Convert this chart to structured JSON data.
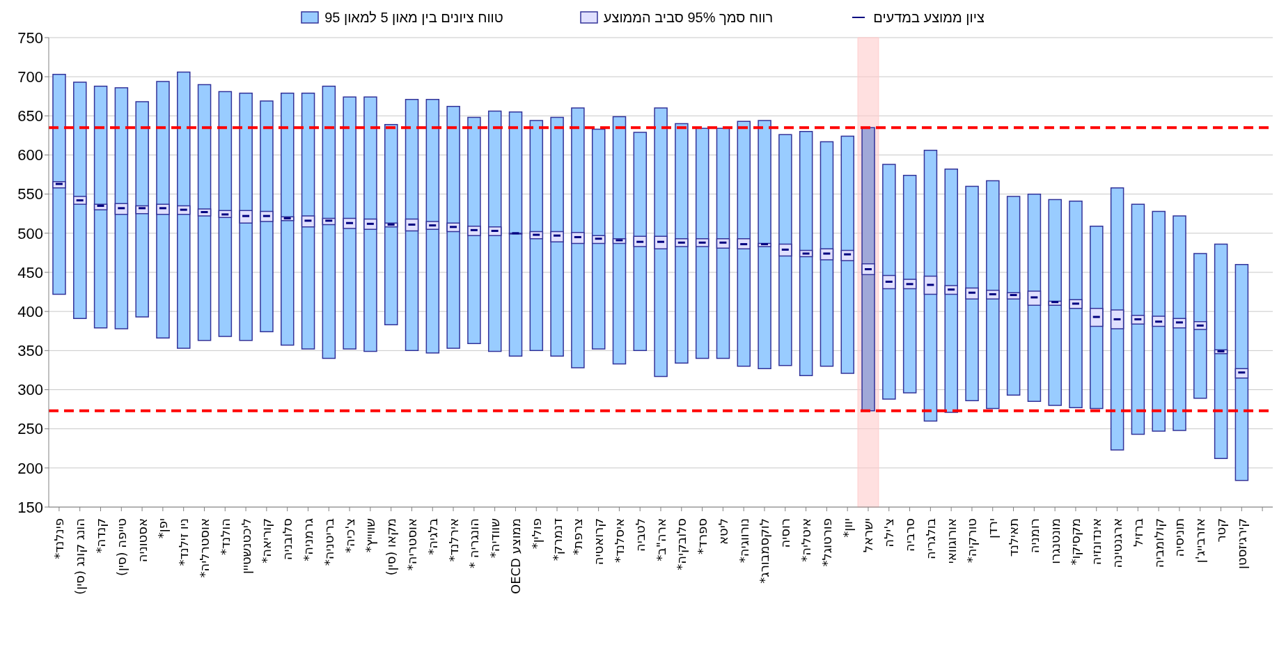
{
  "chart_data": {
    "type": "bar",
    "categories": [
      "פינלנד*",
      "הונג קונג (סין)",
      "קנדה*",
      "טייפה (סין)",
      "אסטוניה",
      "יפן*",
      "ניו זילנד*",
      "אוסטרליה*",
      "הולנד*",
      "ליכטנשטיין",
      "קוריאה*",
      "סלובניה",
      "גרמניה*",
      "בריטניה*",
      "צ'כיה*",
      "שווייץ*",
      "מקאו (סין)",
      "אוסטריה*",
      "בלגיה*",
      "אירלנד*",
      "הונגריה *",
      "שוודיה*",
      "ממוצע OECD",
      "פולין*",
      "דנמרק*",
      "צרפת*",
      "קרואטיה",
      "איסלנד*",
      "לטביה",
      "ארה\"ב*",
      "סלובקיה*",
      "ספרד*",
      "ליטא",
      "נורווגיה*",
      "לוקסמבורג*",
      "רוסיה",
      "איטליה*",
      "פורטוגל*",
      "יוון*",
      "ישראל",
      "צ'ילה",
      "סרביה",
      "בולגריה",
      "אורוגוואי",
      "טורקיה*",
      "ירדן",
      "תאילנד",
      "רומניה",
      "מונטנגרו",
      "מקסיקו*",
      "אינדונזיה",
      "ארגנטינה",
      "ברזיל",
      "קולומביה",
      "תוניסיה",
      "אזרבייג'ן",
      "קטר",
      "קירגיזסטן",
      null
    ],
    "series": [
      {
        "name": "טווח ציונים בין מאון 5 למאון 95",
        "color": "#99ccff",
        "colors": [
          "#99ccff",
          "#99ccff",
          "#99ccff",
          "#99ccff",
          "#99ccff",
          "#99ccff",
          "#99ccff",
          "#99ccff",
          "#99ccff",
          "#99ccff",
          "#99ccff",
          "#99ccff",
          "#99ccff",
          "#99ccff",
          "#99ccff",
          "#99ccff",
          "#99ccff",
          "#99ccff",
          "#99ccff",
          "#99ccff",
          "#99ccff",
          "#99ccff",
          "#99ccff",
          "#99ccff",
          "#99ccff",
          "#99ccff",
          "#99ccff",
          "#99ccff",
          "#99ccff",
          "#99ccff",
          "#99ccff",
          "#99ccff",
          "#99ccff",
          "#99ccff",
          "#99ccff",
          "#99ccff",
          "#99ccff",
          "#99ccff",
          "#99ccff",
          "#a0a8d8",
          "#99ccff",
          "#99ccff",
          "#99ccff",
          "#99ccff",
          "#99ccff",
          "#99ccff",
          "#99ccff",
          "#99ccff",
          "#99ccff",
          "#99ccff",
          "#99ccff",
          "#99ccff",
          "#99ccff",
          "#99ccff",
          "#99ccff",
          "#99ccff",
          "#99ccff",
          "#99ccff",
          null
        ],
        "base": [
          422,
          391,
          379,
          378,
          393,
          366,
          353,
          363,
          368,
          363,
          374,
          357,
          352,
          340,
          352,
          349,
          383,
          350,
          347,
          353,
          359,
          349,
          343,
          350,
          343,
          328,
          352,
          333,
          350,
          317,
          334,
          340,
          340,
          330,
          327,
          331,
          318,
          330,
          321,
          273,
          288,
          296,
          260,
          271,
          286,
          276,
          293,
          285,
          280,
          277,
          276,
          223,
          243,
          247,
          248,
          289,
          212,
          184,
          null
        ],
        "values": [
          281,
          302,
          309,
          308,
          275,
          328,
          353,
          327,
          313,
          316,
          295,
          322,
          327,
          348,
          322,
          325,
          256,
          321,
          324,
          309,
          289,
          307,
          312,
          294,
          305,
          332,
          281,
          316,
          279,
          343,
          306,
          294,
          294,
          313,
          317,
          295,
          312,
          287,
          303,
          362,
          300,
          278,
          346,
          311,
          274,
          291,
          254,
          265,
          263,
          264,
          233,
          335,
          294,
          281,
          274,
          185,
          274,
          276,
          null
        ]
      },
      {
        "name": "רווח סמך 95% סביב הממוצע",
        "type": "bar",
        "color": "#e0e0ff",
        "base": [
          558,
          537,
          530,
          524,
          525,
          524,
          524,
          522,
          520,
          513,
          515,
          516,
          508,
          511,
          506,
          505,
          508,
          503,
          505,
          502,
          497,
          497,
          499,
          493,
          489,
          487,
          487,
          487,
          483,
          480,
          483,
          483,
          481,
          480,
          483,
          471,
          470,
          466,
          465,
          447,
          429,
          429,
          422,
          422,
          416,
          416,
          416,
          408,
          408,
          404,
          381,
          378,
          384,
          381,
          379,
          377,
          346,
          315,
          null
        ],
        "values": [
          8,
          10,
          7,
          14,
          10,
          13,
          11,
          9,
          9,
          16,
          13,
          5,
          14,
          8,
          13,
          13,
          5,
          15,
          10,
          11,
          12,
          11,
          1,
          9,
          13,
          14,
          10,
          6,
          13,
          16,
          10,
          10,
          12,
          13,
          4,
          15,
          8,
          14,
          13,
          14,
          17,
          12,
          23,
          11,
          14,
          11,
          8,
          18,
          5,
          11,
          23,
          24,
          11,
          13,
          12,
          10,
          5,
          12,
          null
        ]
      },
      {
        "name": "ציון ממוצע במדעים",
        "type": "scatter",
        "color": "#000080",
        "values": [
          563,
          542,
          535,
          532,
          532,
          532,
          530,
          527,
          524,
          522,
          522,
          519,
          516,
          516,
          513,
          512,
          511,
          511,
          510,
          508,
          504,
          503,
          500,
          498,
          497,
          495,
          493,
          491,
          489,
          489,
          488,
          488,
          488,
          486,
          486,
          479,
          474,
          474,
          473,
          454,
          438,
          435,
          434,
          428,
          424,
          422,
          421,
          418,
          412,
          410,
          393,
          390,
          390,
          387,
          386,
          382,
          349,
          322,
          null
        ]
      }
    ],
    "ylim": [
      150,
      750
    ],
    "yticks": [
      150,
      200,
      250,
      300,
      350,
      400,
      450,
      500,
      550,
      600,
      650,
      700,
      750
    ],
    "grid": "y",
    "legend": "top",
    "ref_lines": [
      {
        "axis": "y",
        "value": 635,
        "color": "#ff0000",
        "line_style": "dashed"
      },
      {
        "axis": "y",
        "value": 273,
        "color": "#ff0000",
        "line_style": "dashed"
      }
    ],
    "bands": [
      {
        "axis": "x",
        "from": "ישראל",
        "to": "ישראל",
        "color": "#ffcccc"
      }
    ]
  }
}
